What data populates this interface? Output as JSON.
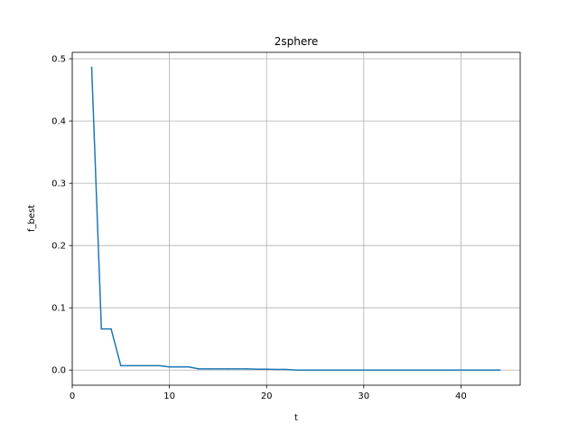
{
  "chart_data": {
    "type": "line",
    "title": "2sphere",
    "xlabel": "t",
    "ylabel": "f_best",
    "xlim": [
      0,
      46.1
    ],
    "ylim": [
      -0.0243,
      0.5103
    ],
    "xticks": [
      0,
      10,
      20,
      30,
      40
    ],
    "yticks": [
      0.0,
      0.1,
      0.2,
      0.3,
      0.4,
      0.5
    ],
    "xtick_labels": [
      "0",
      "10",
      "20",
      "30",
      "40"
    ],
    "ytick_labels": [
      "0.0",
      "0.1",
      "0.2",
      "0.3",
      "0.4",
      "0.5"
    ],
    "grid": true,
    "legend": "none",
    "line_color": "#1f77b4",
    "series": [
      {
        "x": [
          2,
          3,
          4,
          5,
          6,
          7,
          8,
          9,
          10,
          11,
          12,
          13,
          14,
          15,
          16,
          17,
          18,
          19,
          20,
          21,
          22,
          23,
          24,
          25,
          26,
          27,
          28,
          29,
          30,
          31,
          32,
          33,
          34,
          35,
          36,
          37,
          38,
          39,
          40,
          41,
          42,
          43,
          44
        ],
        "values": [
          0.486,
          0.066,
          0.066,
          0.007,
          0.007,
          0.007,
          0.007,
          0.007,
          0.005,
          0.005,
          0.005,
          0.002,
          0.002,
          0.002,
          0.002,
          0.002,
          0.002,
          0.0015,
          0.0015,
          0.001,
          0.001,
          0.0,
          0.0,
          0.0,
          0.0,
          0.0,
          0.0,
          0.0,
          0.0,
          0.0,
          0.0,
          0.0,
          0.0,
          0.0,
          0.0,
          0.0,
          0.0,
          0.0,
          0.0,
          0.0,
          0.0,
          0.0,
          0.0
        ]
      }
    ]
  }
}
